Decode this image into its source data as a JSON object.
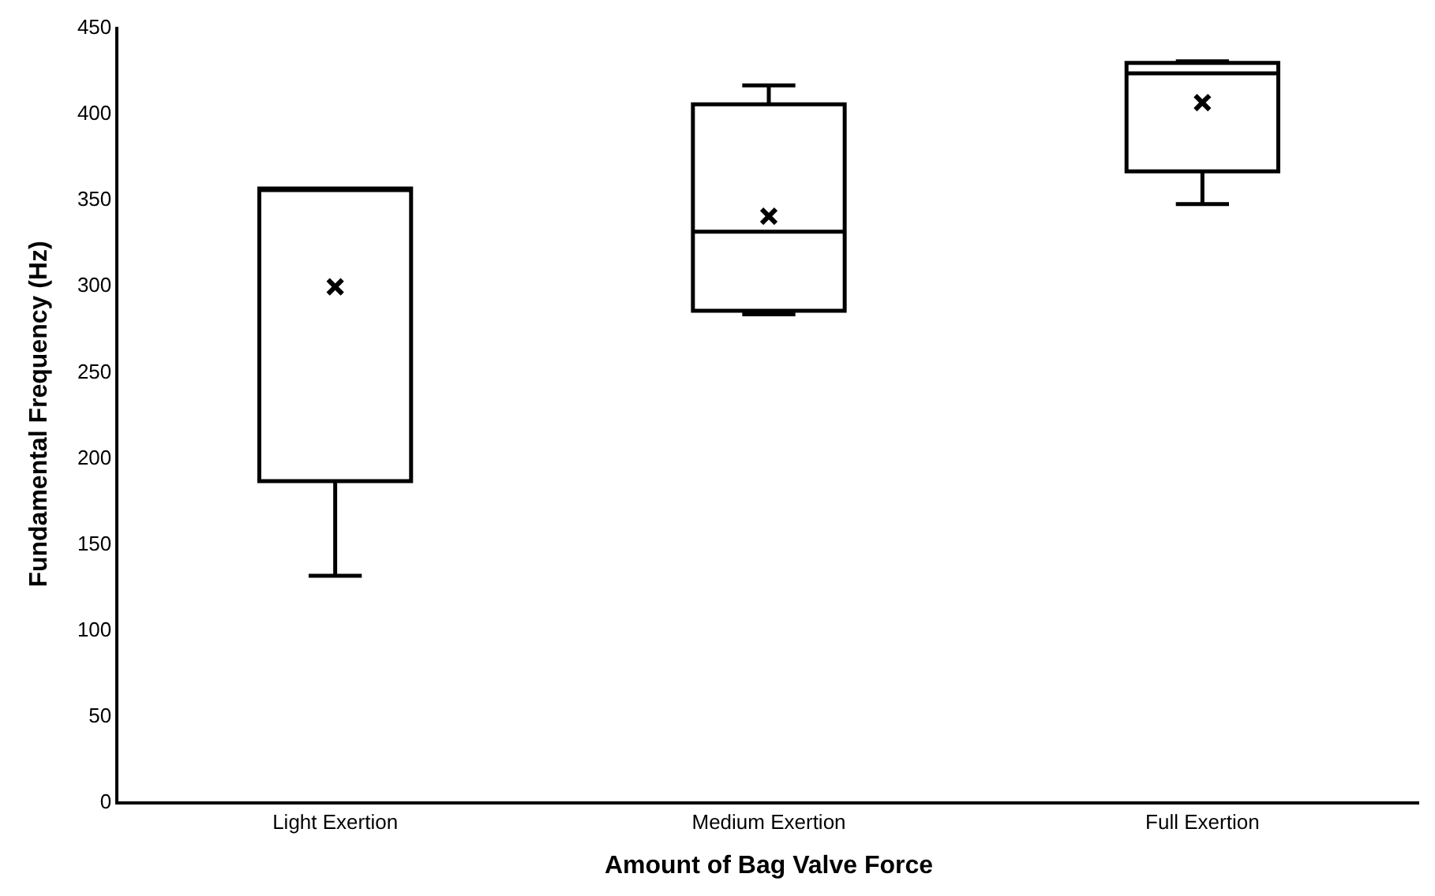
{
  "chart_data": {
    "type": "box",
    "xlabel": "Amount of Bag Valve Force",
    "ylabel": "Fundamental Frequency (Hz)",
    "categories": [
      "Light Exertion",
      "Medium Exertion",
      "Full Exertion"
    ],
    "boxes": [
      {
        "low": 131,
        "q1": 186,
        "median": 356,
        "q3": 356,
        "high": 356,
        "mean": 299
      },
      {
        "low": 283,
        "q1": 285,
        "median": 331,
        "q3": 405,
        "high": 416,
        "mean": 340
      },
      {
        "low": 347,
        "q1": 366,
        "median": 423,
        "q3": 429,
        "high": 430,
        "mean": 406
      }
    ],
    "color": "#000000",
    "ylim": [
      0,
      450
    ],
    "yticks": [
      0,
      50,
      100,
      150,
      200,
      250,
      300,
      350,
      400,
      450
    ]
  }
}
